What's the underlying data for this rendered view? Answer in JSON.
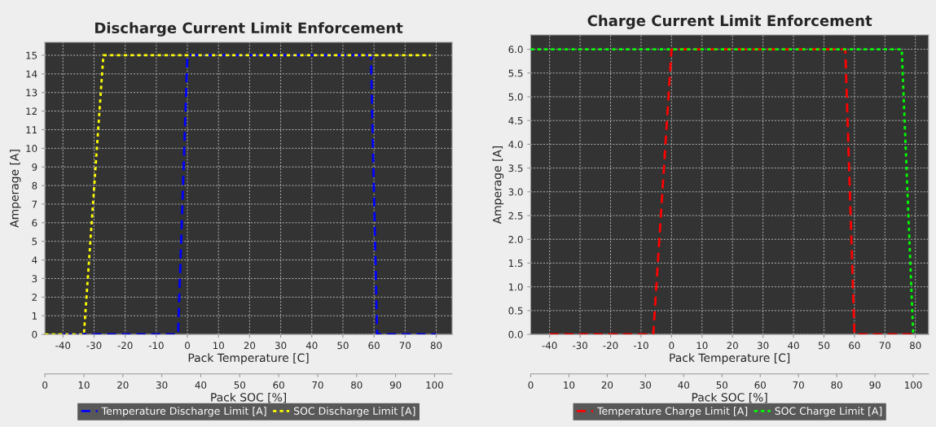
{
  "chart_data": [
    {
      "type": "line",
      "title": "Discharge Current Limit Enforcement",
      "xlabel": "Pack Temperature [C]",
      "ylabel": "Amperage [A]",
      "x2label": "Pack SOC [%]",
      "xlim": [
        -45.8,
        85.1
      ],
      "xticks": [
        -40,
        -30,
        -20,
        -10,
        0,
        10,
        20,
        30,
        40,
        50,
        60,
        70,
        80
      ],
      "x2lim": [
        0,
        104.5
      ],
      "x2ticks": [
        0,
        10,
        20,
        30,
        40,
        50,
        60,
        70,
        80,
        90,
        100
      ],
      "ylim": [
        0,
        15.7
      ],
      "yticks": [
        0,
        1,
        2,
        3,
        4,
        5,
        6,
        7,
        8,
        9,
        10,
        11,
        12,
        13,
        14,
        15
      ],
      "grid": true,
      "legend": "bottom",
      "marker": "none",
      "series": [
        {
          "name": "Temperature Discharge Limit [A]",
          "color": "#0000ff",
          "line_style": "dashed",
          "x": [
            -40,
            -3,
            0,
            59,
            61,
            80
          ],
          "values": [
            0,
            0,
            15,
            15,
            0,
            0
          ]
        },
        {
          "name": "SOC Discharge Limit [A]",
          "color": "#ffff00",
          "line_style": "dotted",
          "axis": "x2",
          "x": [
            0,
            10,
            15,
            99
          ],
          "values": [
            0,
            0,
            15,
            15
          ]
        }
      ]
    },
    {
      "type": "line",
      "title": "Charge Current Limit Enforcement",
      "xlabel": "Pack Temperature [C]",
      "ylabel": "Amperage [A]",
      "x2label": "Pack SOC [%]",
      "xlim": [
        -46.2,
        84.3
      ],
      "xticks": [
        -40,
        -30,
        -20,
        -10,
        0,
        10,
        20,
        30,
        40,
        50,
        60,
        70,
        80
      ],
      "x2lim": [
        0,
        104
      ],
      "x2ticks": [
        0,
        10,
        20,
        30,
        40,
        50,
        60,
        70,
        80,
        90,
        100
      ],
      "ylim": [
        0,
        6.3
      ],
      "yticks": [
        {
          "value": 0,
          "label": "0.0"
        },
        {
          "value": 0.5,
          "label": "0.5"
        },
        {
          "value": 1,
          "label": "1.0"
        },
        {
          "value": 1.5,
          "label": "1.5"
        },
        {
          "value": 2,
          "label": "2.0"
        },
        {
          "value": 2.5,
          "label": "2.5"
        },
        {
          "value": 3,
          "label": "3.0"
        },
        {
          "value": 3.5,
          "label": "3.5"
        },
        {
          "value": 4,
          "label": "4.0"
        },
        {
          "value": 4.5,
          "label": "4.5"
        },
        {
          "value": 5,
          "label": "5.0"
        },
        {
          "value": 5.5,
          "label": "5.5"
        },
        {
          "value": 6,
          "label": "6.0"
        }
      ],
      "grid": true,
      "legend": "bottom",
      "marker": "none",
      "series": [
        {
          "name": "Temperature Charge Limit [A]",
          "color": "#ff0000",
          "line_style": "dashed",
          "x": [
            -40,
            -6,
            0,
            57,
            60,
            79
          ],
          "values": [
            0,
            0,
            6,
            6,
            0,
            0
          ]
        },
        {
          "name": "SOC Charge Limit [A]",
          "color": "#00ff00",
          "line_style": "dotted",
          "axis": "x2",
          "x": [
            0,
            97,
            100
          ],
          "values": [
            6,
            6,
            0
          ]
        }
      ]
    }
  ]
}
